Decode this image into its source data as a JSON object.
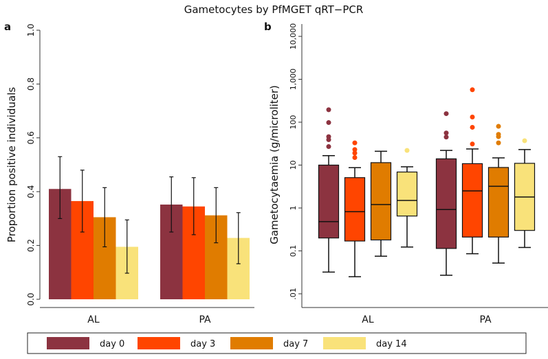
{
  "title": "Gametocytes by PfMGET qRT−PCR",
  "colors": {
    "day 0": "#8c3340",
    "day 3": "#ff4500",
    "day 7": "#e07c00",
    "day 14": "#f9e27a"
  },
  "legend": [
    "day 0",
    "day 3",
    "day 7",
    "day 14"
  ],
  "chart_data": [
    {
      "type": "bar",
      "panel_label": "a",
      "ylabel": "Proportion positive individuals",
      "xlabel": "",
      "ylim": [
        0,
        1.0
      ],
      "yticks": [
        "0.0",
        "0.2",
        "0.4",
        "0.6",
        "0.8",
        "1.0"
      ],
      "categories": [
        "AL",
        "PA"
      ],
      "series": [
        {
          "name": "day 0",
          "values": [
            0.41,
            0.352
          ],
          "ci_low": [
            0.3,
            0.25
          ],
          "ci_high": [
            0.53,
            0.455
          ]
        },
        {
          "name": "day 3",
          "values": [
            0.365,
            0.345
          ],
          "ci_low": [
            0.25,
            0.24
          ],
          "ci_high": [
            0.48,
            0.452
          ]
        },
        {
          "name": "day 7",
          "values": [
            0.305,
            0.312
          ],
          "ci_low": [
            0.195,
            0.21
          ],
          "ci_high": [
            0.415,
            0.415
          ]
        },
        {
          "name": "day 14",
          "values": [
            0.195,
            0.228
          ],
          "ci_low": [
            0.097,
            0.132
          ],
          "ci_high": [
            0.295,
            0.322
          ]
        }
      ]
    },
    {
      "type": "box",
      "panel_label": "b",
      "ylabel": "Gametocytaemia (g/microliter)",
      "xlabel": "",
      "yscale": "log",
      "ylim": [
        0.01,
        10000
      ],
      "yticks": [
        ".01",
        "0.1",
        "1",
        "10",
        "100",
        "1,000",
        "10,000"
      ],
      "categories": [
        "AL",
        "PA"
      ],
      "series": [
        {
          "name": "day 0",
          "boxes": [
            {
              "low": 0.032,
              "q1": 0.2,
              "median": 0.48,
              "q3": 10,
              "high": 16.6,
              "outliers": [
                195,
                98,
                46,
                39,
                27
              ]
            },
            {
              "low": 0.027,
              "q1": 0.114,
              "median": 0.92,
              "q3": 14,
              "high": 22,
              "outliers": [
                158,
                56,
                45
              ]
            }
          ]
        },
        {
          "name": "day 3",
          "boxes": [
            {
              "low": 0.025,
              "q1": 0.17,
              "median": 0.82,
              "q3": 5.1,
              "high": 8.7,
              "outliers": [
                33,
                23,
                19,
                15
              ]
            },
            {
              "low": 0.086,
              "q1": 0.21,
              "median": 2.5,
              "q3": 10.8,
              "high": 23.8,
              "outliers": [
                570,
                132,
                76,
                31
              ]
            }
          ]
        },
        {
          "name": "day 7",
          "boxes": [
            {
              "low": 0.075,
              "q1": 0.18,
              "median": 1.2,
              "q3": 11.4,
              "high": 21,
              "outliers": []
            },
            {
              "low": 0.052,
              "q1": 0.21,
              "median": 3.2,
              "q3": 8.8,
              "high": 14.7,
              "outliers": [
                80,
                52,
                46,
                33
              ]
            }
          ]
        },
        {
          "name": "day 14",
          "boxes": [
            {
              "low": 0.123,
              "q1": 0.65,
              "median": 1.5,
              "q3": 6.9,
              "high": 9.1,
              "outliers": [
                22
              ]
            },
            {
              "low": 0.12,
              "q1": 0.3,
              "median": 1.8,
              "q3": 11,
              "high": 23,
              "outliers": [
                37
              ]
            }
          ]
        }
      ]
    }
  ]
}
